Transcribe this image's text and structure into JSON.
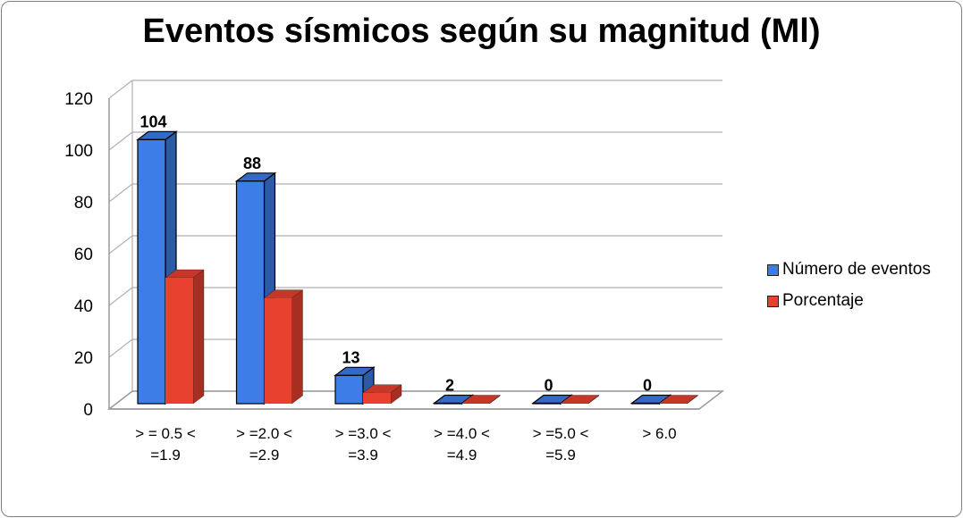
{
  "chart_data": {
    "type": "bar",
    "title": "Eventos sísmicos según su magnitud (Ml)",
    "categories": [
      [
        "> = 0.5 <",
        "=1.9"
      ],
      [
        "> =2.0 <",
        "=2.9"
      ],
      [
        "> =3.0 <",
        "=3.9"
      ],
      [
        "> =4.0 <",
        "=4.9"
      ],
      [
        "> =5.0 <",
        "=5.9"
      ],
      [
        "> 6.0"
      ]
    ],
    "series": [
      {
        "name": "Número de eventos",
        "values": [
          104,
          88,
          13,
          2,
          0,
          0
        ],
        "color": "#3c7de8",
        "data_labels": [
          "104",
          "88",
          "13",
          "2",
          "0",
          "0"
        ]
      },
      {
        "name": "Porcentaje",
        "values": [
          50.7,
          42.9,
          6.3,
          1.0,
          0,
          0
        ],
        "color": "#e8412f"
      }
    ],
    "ylim": [
      0,
      120
    ],
    "yticks": [
      "0",
      "20",
      "40",
      "60",
      "80",
      "100",
      "120"
    ],
    "grid": true,
    "legend_position": "right"
  }
}
